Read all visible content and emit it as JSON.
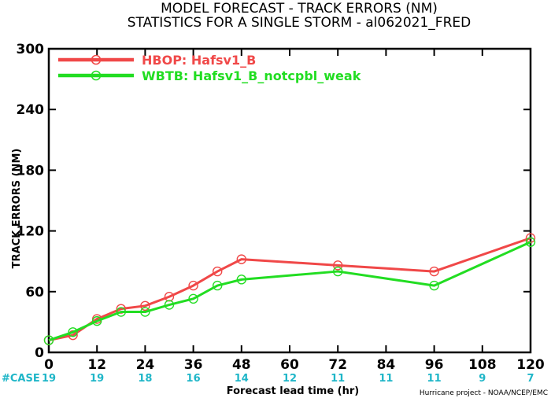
{
  "chart_data": {
    "type": "line",
    "title": "MODEL FORECAST - TRACK ERRORS (NM)",
    "subtitle": "STATISTICS FOR A SINGLE STORM - al062021_FRED",
    "xlabel": "Forecast lead time (hr)",
    "ylabel": "TRACK ERRORS (NM)",
    "xlim": [
      0,
      120
    ],
    "ylim": [
      0,
      300
    ],
    "x_ticks": [
      "0",
      "12",
      "24",
      "36",
      "48",
      "60",
      "72",
      "84",
      "96",
      "108",
      "120"
    ],
    "y_ticks": [
      "0",
      "60",
      "120",
      "180",
      "240",
      "300"
    ],
    "x_tick_values": [
      0,
      12,
      24,
      36,
      48,
      60,
      72,
      84,
      96,
      108,
      120
    ],
    "y_tick_values": [
      0,
      60,
      120,
      180,
      240,
      300
    ],
    "legend_position": "top-left",
    "series": [
      {
        "name": "HBOP: Hafsv1_B",
        "color": "#f04848",
        "x": [
          0,
          6,
          12,
          18,
          24,
          30,
          36,
          42,
          48,
          72,
          96,
          120
        ],
        "y": [
          12,
          17,
          33,
          43,
          46,
          55,
          66,
          80,
          92,
          86,
          80,
          113
        ]
      },
      {
        "name": "WBTB: Hafsv1_B_notcpbl_weak",
        "color": "#22dd22",
        "x": [
          0,
          6,
          12,
          18,
          24,
          30,
          36,
          42,
          48,
          72,
          96,
          120
        ],
        "y": [
          12,
          20,
          31,
          40,
          40,
          47,
          53,
          66,
          72,
          80,
          66,
          109
        ]
      }
    ],
    "case_label": "#CASE",
    "case_hours": [
      0,
      12,
      24,
      36,
      48,
      60,
      72,
      84,
      96,
      108,
      120
    ],
    "case_counts": [
      "19",
      "19",
      "18",
      "16",
      "14",
      "12",
      "11",
      "11",
      "11",
      "9",
      "7"
    ],
    "credit": "Hurricane project - NOAA/NCEP/EMC",
    "colors": {
      "case_text": "#1fb6c8"
    }
  }
}
